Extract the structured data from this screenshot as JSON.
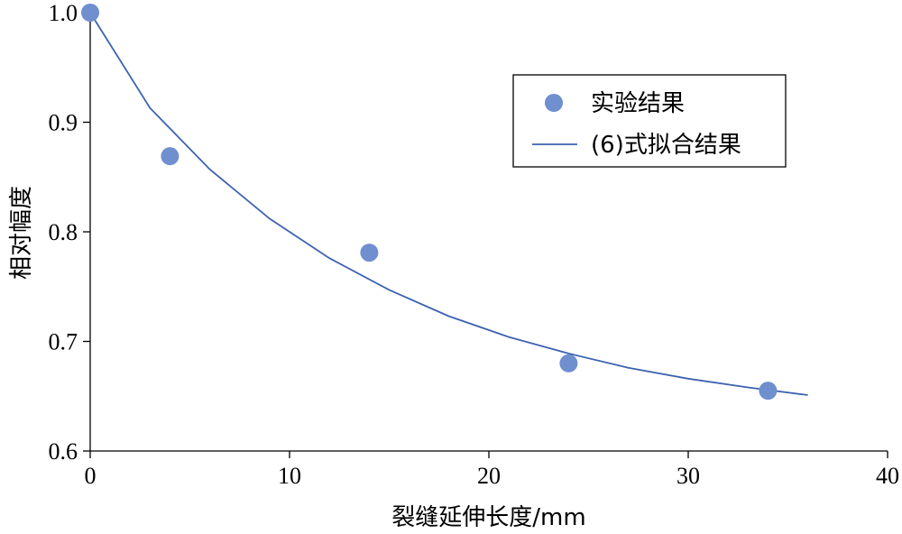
{
  "chart_data": {
    "type": "scatter",
    "xlabel": "裂缝延伸长度/mm",
    "ylabel": "相对幅度",
    "xlim": [
      0,
      40
    ],
    "ylim": [
      0.6,
      1.0
    ],
    "xticks": [
      "0",
      "10",
      "20",
      "30",
      "40"
    ],
    "yticks": [
      "0.6",
      "0.7",
      "0.8",
      "0.9",
      "1.0"
    ],
    "grid": false,
    "legend_position": "top-right",
    "series": [
      {
        "name": "实验结果",
        "kind": "scatter",
        "color": "#6f8fce",
        "x": [
          0,
          4,
          14,
          24,
          34
        ],
        "y": [
          1.0,
          0.869,
          0.781,
          0.68,
          0.655
        ]
      },
      {
        "name": "(6)式拟合结果",
        "kind": "line",
        "color": "#3d62b0",
        "x": [
          0,
          3,
          6,
          9,
          12,
          15,
          18,
          21,
          24,
          27,
          30,
          33,
          36
        ],
        "y": [
          1.0,
          0.913,
          0.857,
          0.812,
          0.776,
          0.747,
          0.723,
          0.704,
          0.689,
          0.676,
          0.666,
          0.658,
          0.651
        ]
      }
    ]
  }
}
